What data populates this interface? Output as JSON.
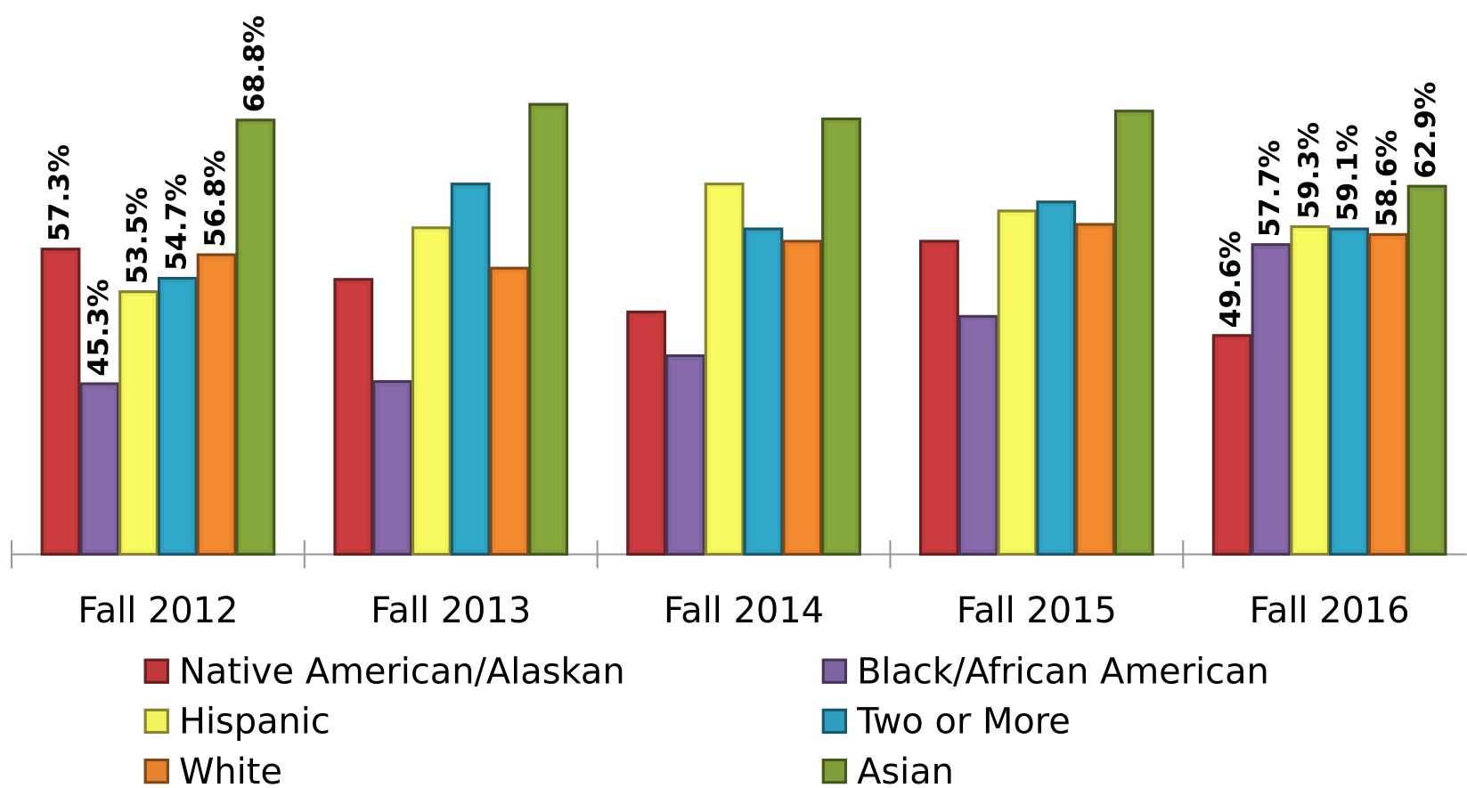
{
  "chart_data": {
    "type": "bar",
    "categories": [
      "Fall 2012",
      "Fall 2013",
      "Fall 2014",
      "Fall 2015",
      "Fall 2016"
    ],
    "ylim": [
      30.1,
      75
    ],
    "legend": "bottom",
    "series": [
      {
        "name": "Native American/Alaskan",
        "color": "#c0393b",
        "values": [
          57.3,
          54.6,
          51.7,
          58.0,
          49.6
        ],
        "value_labels": [
          "57.3%",
          null,
          null,
          null,
          "49.6%"
        ]
      },
      {
        "name": "Black/African American",
        "color": "#8064a2",
        "values": [
          45.3,
          45.5,
          47.8,
          51.3,
          57.7
        ],
        "value_labels": [
          "45.3%",
          null,
          null,
          null,
          "57.7%"
        ]
      },
      {
        "name": "Hispanic",
        "color": "#f2f25a",
        "values": [
          53.5,
          59.2,
          63.1,
          60.7,
          59.3
        ],
        "value_labels": [
          "53.5%",
          null,
          null,
          null,
          "59.3%"
        ]
      },
      {
        "name": "Two or More",
        "color": "#2e9fbf",
        "values": [
          54.7,
          63.1,
          59.1,
          61.5,
          59.1
        ],
        "value_labels": [
          "54.7%",
          null,
          null,
          null,
          "59.1%"
        ]
      },
      {
        "name": "White",
        "color": "#e8822c",
        "values": [
          56.8,
          55.6,
          58.0,
          59.5,
          58.6
        ],
        "value_labels": [
          "56.8%",
          null,
          null,
          null,
          "58.6%"
        ]
      },
      {
        "name": "Asian",
        "color": "#7f9e38",
        "values": [
          68.8,
          70.2,
          68.9,
          69.6,
          62.9
        ],
        "value_labels": [
          "68.8%",
          null,
          null,
          null,
          "62.9%"
        ]
      }
    ]
  }
}
